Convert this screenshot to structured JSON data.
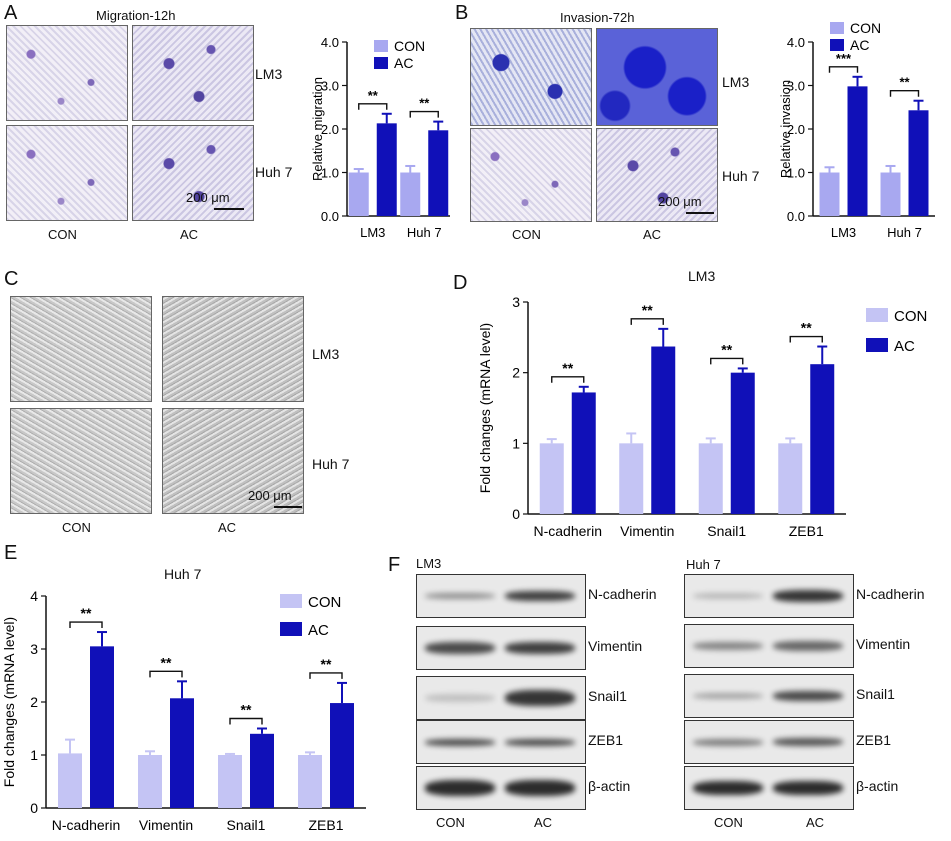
{
  "panels": {
    "A": {
      "label": "A",
      "title": "Migration-12h",
      "rows": [
        "LM3",
        "Huh 7"
      ],
      "cols": [
        "CON",
        "AC"
      ],
      "scale": "200 μm"
    },
    "B": {
      "label": "B",
      "title": "Invasion-72h",
      "rows": [
        "LM3",
        "Huh 7"
      ],
      "cols": [
        "CON",
        "AC"
      ],
      "scale": "200 μm"
    },
    "C": {
      "label": "C",
      "rows": [
        "LM3",
        "Huh 7"
      ],
      "cols": [
        "CON",
        "AC"
      ],
      "scale": "200 μm"
    },
    "D": {
      "label": "D",
      "title": "LM3"
    },
    "E": {
      "label": "E",
      "title": "Huh 7"
    },
    "F": {
      "label": "F",
      "left_title": "LM3",
      "right_title": "Huh 7",
      "proteins": [
        "N-cadherin",
        "Vimentin",
        "Snail1",
        "ZEB1",
        "β-actin"
      ],
      "cols": [
        "CON",
        "AC"
      ]
    }
  },
  "colors": {
    "con": "#a8a8f0",
    "ac": "#1010b8",
    "con_light": "#c4c4f4"
  },
  "chart_data": [
    {
      "id": "A",
      "type": "bar",
      "categories": [
        "LM3",
        "Huh 7"
      ],
      "ylabel": "Relative migration",
      "ylim": [
        0,
        4
      ],
      "yticks": [
        "0.0",
        "1.0",
        "2.0",
        "3.0",
        "4.0"
      ],
      "series": [
        {
          "name": "CON",
          "values": [
            1.0,
            1.0
          ],
          "errors": [
            0.08,
            0.15
          ]
        },
        {
          "name": "AC",
          "values": [
            2.13,
            1.97
          ],
          "errors": [
            0.22,
            0.2
          ]
        }
      ],
      "sig": [
        "**",
        "**"
      ],
      "legend": "top-right"
    },
    {
      "id": "B",
      "type": "bar",
      "categories": [
        "LM3",
        "Huh 7"
      ],
      "ylabel": "Relative invasion",
      "ylim": [
        0,
        4
      ],
      "yticks": [
        "0.0",
        "1.0",
        "2.0",
        "3.0",
        "4.0"
      ],
      "series": [
        {
          "name": "CON",
          "values": [
            1.0,
            1.0
          ],
          "errors": [
            0.12,
            0.15
          ]
        },
        {
          "name": "AC",
          "values": [
            2.98,
            2.43
          ],
          "errors": [
            0.22,
            0.22
          ]
        }
      ],
      "sig": [
        "***",
        "**"
      ],
      "legend": "top"
    },
    {
      "id": "D",
      "type": "bar",
      "categories": [
        "N-cadherin",
        "Vimentin",
        "Snail1",
        "ZEB1"
      ],
      "ylabel": "Fold changes (mRNA level)",
      "ylim": [
        0,
        3
      ],
      "yticks": [
        "0",
        "1",
        "2",
        "3"
      ],
      "series": [
        {
          "name": "CON",
          "values": [
            1.0,
            1.0,
            1.0,
            1.0
          ],
          "errors": [
            0.06,
            0.14,
            0.07,
            0.07
          ]
        },
        {
          "name": "AC",
          "values": [
            1.72,
            2.37,
            2.0,
            2.12
          ],
          "errors": [
            0.08,
            0.25,
            0.06,
            0.25
          ]
        }
      ],
      "sig": [
        "**",
        "**",
        "**",
        "**"
      ],
      "legend": "right"
    },
    {
      "id": "E",
      "type": "bar",
      "categories": [
        "N-cadherin",
        "Vimentin",
        "Snail1",
        "ZEB1"
      ],
      "ylabel": "Fold changes (mRNA level)",
      "ylim": [
        0,
        4
      ],
      "yticks": [
        "0",
        "1",
        "2",
        "3",
        "4"
      ],
      "series": [
        {
          "name": "CON",
          "values": [
            1.03,
            1.0,
            1.0,
            1.0
          ],
          "errors": [
            0.26,
            0.07,
            0.02,
            0.05
          ]
        },
        {
          "name": "AC",
          "values": [
            3.05,
            2.07,
            1.4,
            1.98
          ],
          "errors": [
            0.27,
            0.32,
            0.1,
            0.38
          ]
        }
      ],
      "sig": [
        "**",
        "**",
        "**",
        "**"
      ],
      "legend": "top-right"
    }
  ]
}
